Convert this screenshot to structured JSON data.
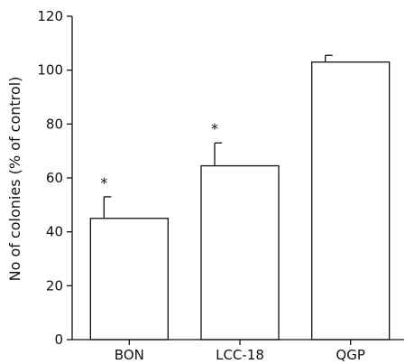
{
  "chart_data": {
    "type": "bar",
    "title": "",
    "xlabel": "",
    "ylabel": "No of colonies (% of control)",
    "ylim": [
      0,
      120
    ],
    "yticks": [
      0,
      20,
      40,
      60,
      80,
      100,
      120
    ],
    "categories": [
      "BON",
      "LCC-18",
      "QGP"
    ],
    "values": [
      45,
      64.5,
      103
    ],
    "error_upper": [
      8,
      8.5,
      2.5
    ],
    "annotations": [
      "*",
      "*",
      ""
    ],
    "grid": false,
    "legend": "none",
    "bar_fill": "#ffffff",
    "bar_stroke": "#111111"
  }
}
